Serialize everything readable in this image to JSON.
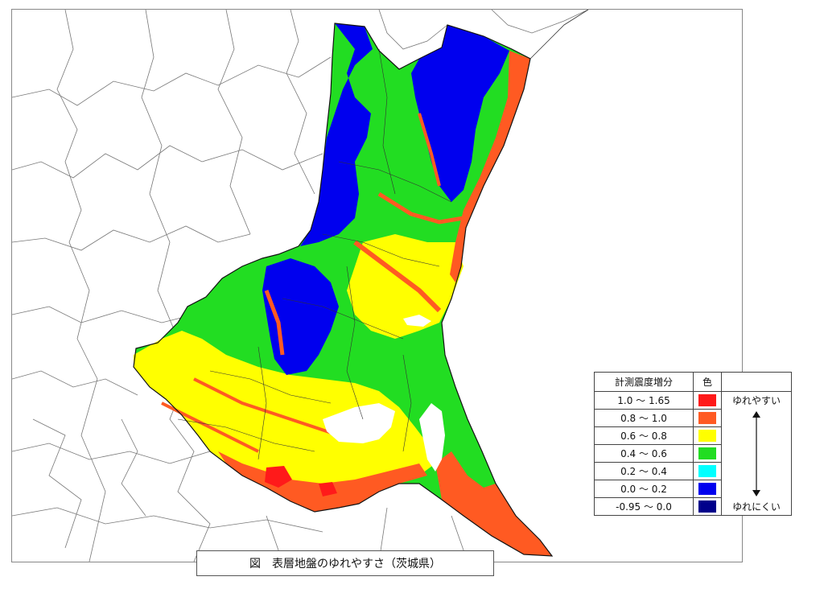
{
  "caption": "図　表層地盤のゆれやすさ（茨城県）",
  "legend": {
    "header_range": "計測震度増分",
    "header_color": "色",
    "label_top": "ゆれやすい",
    "label_bottom": "ゆれにくい",
    "rows": [
      {
        "range": "1.0 〜 1.65",
        "color": "#ff1a1a"
      },
      {
        "range": "0.8 〜 1.0",
        "color": "#ff5a22"
      },
      {
        "range": "0.6 〜 0.8",
        "color": "#ffff00"
      },
      {
        "range": "0.4 〜 0.6",
        "color": "#22dd22"
      },
      {
        "range": "0.2 〜 0.4",
        "color": "#00ffff"
      },
      {
        "range": "0.0 〜 0.2",
        "color": "#0000ee"
      },
      {
        "range": "-0.95 〜 0.0",
        "color": "#00008b"
      }
    ]
  }
}
